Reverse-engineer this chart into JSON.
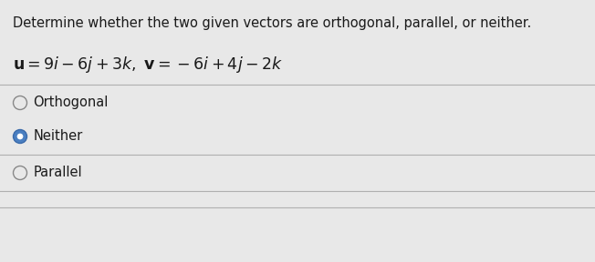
{
  "background_color": "#e8e8e8",
  "title_text": "Determine whether the two given vectors are orthogonal, parallel, or neither.",
  "options": [
    "Orthogonal",
    "Neither",
    "Parallel"
  ],
  "selected_index": 1,
  "title_fontsize": 10.5,
  "eq_fontsize": 12.5,
  "option_fontsize": 10.5,
  "divider_color": "#b0b0b0",
  "text_color": "#1a1a1a",
  "circle_edge_color": "#888888",
  "selected_fill": "#4a7fc1",
  "selected_edge": "#3a6aaa",
  "unselected_fill": "#e8e8e8"
}
